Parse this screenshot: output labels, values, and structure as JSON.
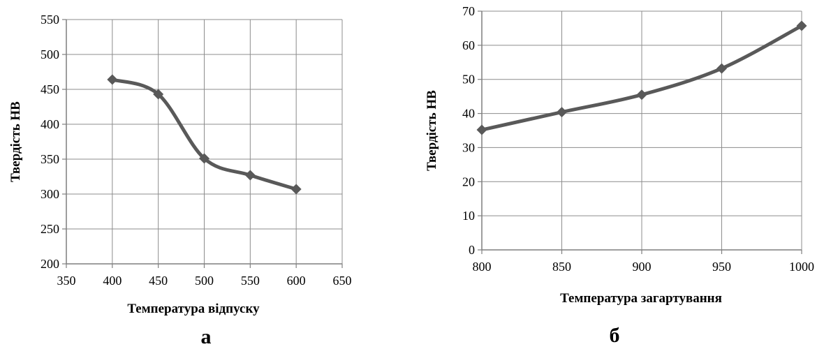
{
  "chart_data": [
    {
      "type": "line",
      "panel_label": "а",
      "xlabel": "Температура відпуску",
      "ylabel": "Твердість НВ",
      "xlim": [
        350,
        650
      ],
      "ylim": [
        200,
        550
      ],
      "xticks": [
        350,
        400,
        450,
        500,
        550,
        600,
        650
      ],
      "yticks": [
        200,
        250,
        300,
        350,
        400,
        450,
        500,
        550
      ],
      "grid": true,
      "marker": "diamond",
      "smooth": true,
      "line_color": "#595959",
      "series": [
        {
          "x": [
            400,
            450,
            500,
            550,
            600
          ],
          "y": [
            464,
            443,
            351,
            327,
            307
          ]
        }
      ]
    },
    {
      "type": "line",
      "panel_label": "б",
      "xlabel": "Температура загартування",
      "ylabel": "Твердість НВ",
      "xlim": [
        800,
        1000
      ],
      "ylim": [
        0,
        70
      ],
      "xticks": [
        800,
        850,
        900,
        950,
        1000
      ],
      "yticks": [
        0,
        10,
        20,
        30,
        40,
        50,
        60,
        70
      ],
      "grid": true,
      "marker": "diamond",
      "smooth": true,
      "line_color": "#595959",
      "series": [
        {
          "x": [
            800,
            850,
            900,
            950,
            1000
          ],
          "y": [
            35.2,
            40.4,
            45.5,
            53.2,
            65.7
          ]
        }
      ]
    }
  ]
}
